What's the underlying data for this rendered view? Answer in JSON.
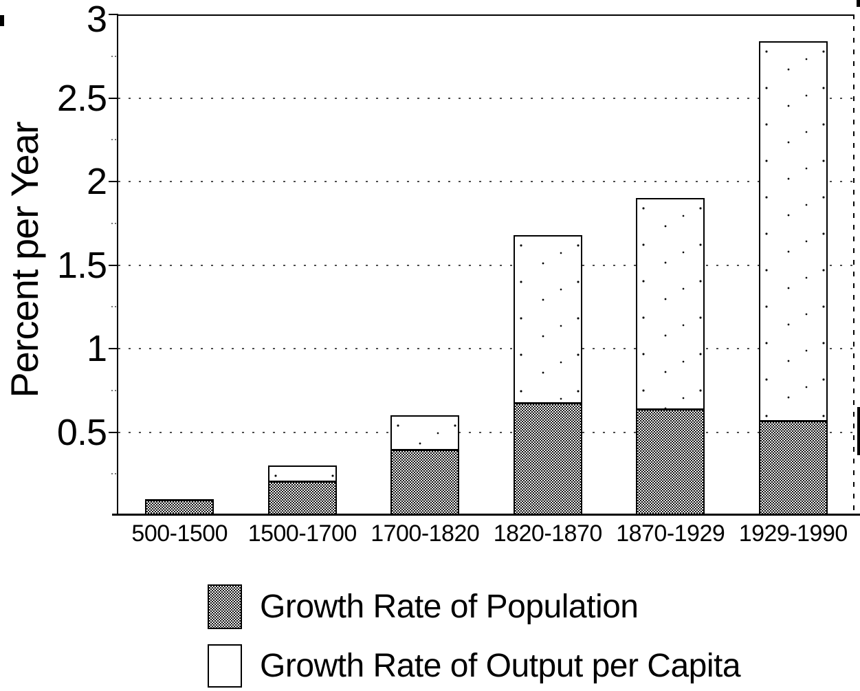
{
  "figure": {
    "background_color": "#ffffff",
    "ink_color": "#000000"
  },
  "y_axis": {
    "title": "Percent per Year",
    "tick_labels": [
      "3",
      "2.5",
      "2",
      "1.5",
      "1",
      "0.5"
    ],
    "tick_values": [
      3,
      2.5,
      2,
      1.5,
      1,
      0.5
    ],
    "min": 0,
    "max": 3,
    "gridline_step": 0.5
  },
  "x_axis": {
    "categories": [
      "500-1500",
      "1500-1700",
      "1700-1820",
      "1820-1870",
      "1870-1929",
      "1929-1990"
    ]
  },
  "legend": {
    "items": [
      {
        "label": "Growth Rate of Population",
        "fill": "gray-stipple"
      },
      {
        "label": "Growth Rate of Output per Capita",
        "fill": "white"
      }
    ]
  },
  "chart_data": {
    "type": "bar",
    "stacked": true,
    "title": "",
    "xlabel": "",
    "ylabel": "Percent per Year",
    "ylim": [
      0,
      3
    ],
    "grid": "horizontal dotted lines every 0.5",
    "legend_position": "below chart",
    "categories": [
      "500-1500",
      "1500-1700",
      "1700-1820",
      "1820-1870",
      "1870-1929",
      "1929-1990"
    ],
    "series": [
      {
        "name": "Growth Rate of Population",
        "fill": "gray-stipple",
        "values": [
          0.1,
          0.21,
          0.4,
          0.68,
          0.64,
          0.57
        ]
      },
      {
        "name": "Growth Rate of Output per Capita",
        "fill": "white",
        "values": [
          0.0,
          0.09,
          0.2,
          1.0,
          1.26,
          2.27
        ]
      }
    ],
    "stack_totals": [
      0.1,
      0.3,
      0.6,
      1.68,
      1.9,
      2.84
    ]
  }
}
